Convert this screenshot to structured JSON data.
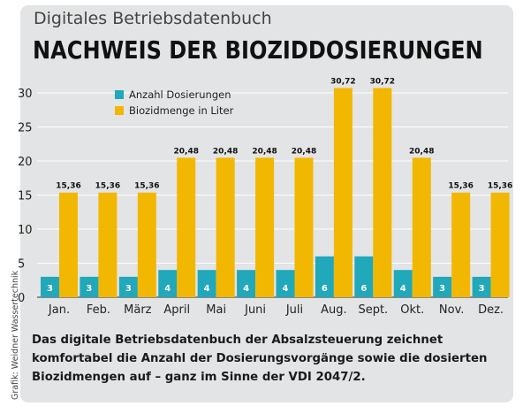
{
  "header": {
    "subtitle": "Digitales Betriebsdatenbuch",
    "title": "NACHWEIS DER BIOZIDDOSIERUNGEN"
  },
  "caption": "Das digitale Betriebsdatenbuch der Absalzsteuerung zeichnet komfortabel die Anzahl der Dosierungsvorgänge sowie die dosierten Biozidmengen auf – ganz im Sinne der VDI 2047/2.",
  "credit": "Grafik: Weidner Wassertechnik",
  "colors": {
    "teal": "#21a8ba",
    "yellow": "#f2b700",
    "panel": "#e3e4e5"
  },
  "chart_data": {
    "type": "bar",
    "categories": [
      "Jan.",
      "Feb.",
      "März",
      "April",
      "Mai",
      "Juni",
      "Juli",
      "Aug.",
      "Sept.",
      "Okt.",
      "Nov.",
      "Dez."
    ],
    "series": [
      {
        "name": "Anzahl Dosierungen",
        "values": [
          3,
          3,
          3,
          4,
          4,
          4,
          4,
          6,
          6,
          4,
          3,
          3
        ],
        "labels": [
          "3",
          "3",
          "3",
          "4",
          "4",
          "4",
          "4",
          "6",
          "6",
          "4",
          "3",
          "3"
        ]
      },
      {
        "name": "Biozidmenge in Liter",
        "values": [
          15.36,
          15.36,
          15.36,
          20.48,
          20.48,
          20.48,
          20.48,
          30.72,
          30.72,
          20.48,
          15.36,
          15.36
        ],
        "labels": [
          "15,36",
          "15,36",
          "15,36",
          "20,48",
          "20,48",
          "20,48",
          "20,48",
          "30,72",
          "30,72",
          "20,48",
          "15,36",
          "15,36"
        ]
      }
    ],
    "ylim": [
      0,
      30
    ],
    "yticks": [
      0,
      5,
      10,
      15,
      20,
      25,
      30
    ],
    "grid": true,
    "legend": "top-left"
  }
}
